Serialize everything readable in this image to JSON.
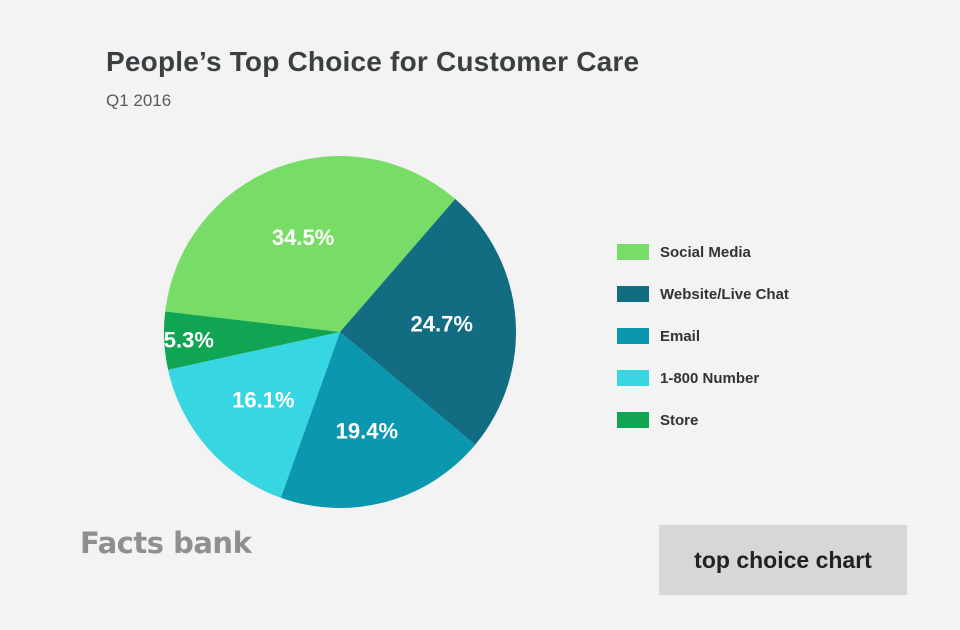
{
  "chart_data": {
    "type": "pie",
    "title": "People’s Top Choice for Customer Care",
    "subtitle": "Q1 2016",
    "slices": [
      {
        "label": "Social Media",
        "value": 34.5,
        "display": "34.5%",
        "color": "#77dd66"
      },
      {
        "label": "Website/Live Chat",
        "value": 24.7,
        "display": "24.7%",
        "color": "#126c82"
      },
      {
        "label": "Email",
        "value": 19.4,
        "display": "19.4%",
        "color": "#0c97b0"
      },
      {
        "label": "1-800 Number",
        "value": 16.1,
        "display": "16.1%",
        "color": "#36d6e2"
      },
      {
        "label": "Store",
        "value": 5.3,
        "display": "5.3%",
        "color": "#10a552"
      }
    ],
    "legend_position": "right"
  },
  "watermark": "Facts bank",
  "tag": "top choice chart"
}
